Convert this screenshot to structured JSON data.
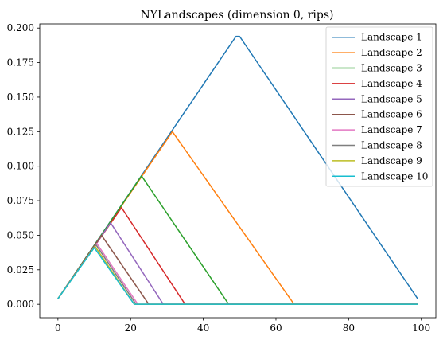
{
  "chart_data": {
    "type": "line",
    "title": "NYLandscapes (dimension 0, rips)",
    "xlabel": "",
    "ylabel": "",
    "xlim": [
      -5,
      104
    ],
    "ylim": [
      -0.0097,
      0.203
    ],
    "xticks": [
      0,
      20,
      40,
      60,
      80,
      100
    ],
    "xtick_labels": [
      "0",
      "20",
      "40",
      "60",
      "80",
      "100"
    ],
    "yticks": [
      0.0,
      0.025,
      0.05,
      0.075,
      0.1,
      0.125,
      0.15,
      0.175,
      0.2
    ],
    "ytick_labels": [
      "0.000",
      "0.025",
      "0.050",
      "0.075",
      "0.100",
      "0.125",
      "0.150",
      "0.175",
      "0.200"
    ],
    "grid": false,
    "legend_position": "top-right",
    "series": [
      {
        "name": "Landscape 1",
        "color": "#1f77b4",
        "x": [
          0,
          49,
          50,
          99
        ],
        "y": [
          0.004,
          0.194,
          0.194,
          0.004
        ]
      },
      {
        "name": "Landscape 2",
        "color": "#ff7f0e",
        "x": [
          0,
          31.5,
          65,
          99
        ],
        "y": [
          0.004,
          0.125,
          0.0,
          0.0
        ]
      },
      {
        "name": "Landscape 3",
        "color": "#2ca02c",
        "x": [
          0,
          23,
          47,
          99
        ],
        "y": [
          0.004,
          0.093,
          0.0,
          0.0
        ]
      },
      {
        "name": "Landscape 4",
        "color": "#d62728",
        "x": [
          0,
          17.5,
          35,
          99
        ],
        "y": [
          0.004,
          0.07,
          0.0,
          0.0
        ]
      },
      {
        "name": "Landscape 5",
        "color": "#9467bd",
        "x": [
          0,
          14.5,
          29,
          99
        ],
        "y": [
          0.004,
          0.059,
          0.0,
          0.0
        ]
      },
      {
        "name": "Landscape 6",
        "color": "#8c564b",
        "x": [
          0,
          12,
          25,
          99
        ],
        "y": [
          0.004,
          0.05,
          0.0,
          0.0
        ]
      },
      {
        "name": "Landscape 7",
        "color": "#e377c2",
        "x": [
          0,
          10.7,
          22,
          99
        ],
        "y": [
          0.004,
          0.044,
          0.0,
          0.0
        ]
      },
      {
        "name": "Landscape 8",
        "color": "#7f7f7f",
        "x": [
          0,
          10.5,
          21.5,
          99
        ],
        "y": [
          0.004,
          0.043,
          0.0,
          0.0
        ]
      },
      {
        "name": "Landscape 9",
        "color": "#bcbd22",
        "x": [
          0,
          10.2,
          21,
          99
        ],
        "y": [
          0.004,
          0.042,
          0.0,
          0.0
        ]
      },
      {
        "name": "Landscape 10",
        "color": "#17becf",
        "x": [
          0,
          10,
          21,
          99
        ],
        "y": [
          0.004,
          0.041,
          0.0,
          0.0
        ]
      }
    ]
  }
}
